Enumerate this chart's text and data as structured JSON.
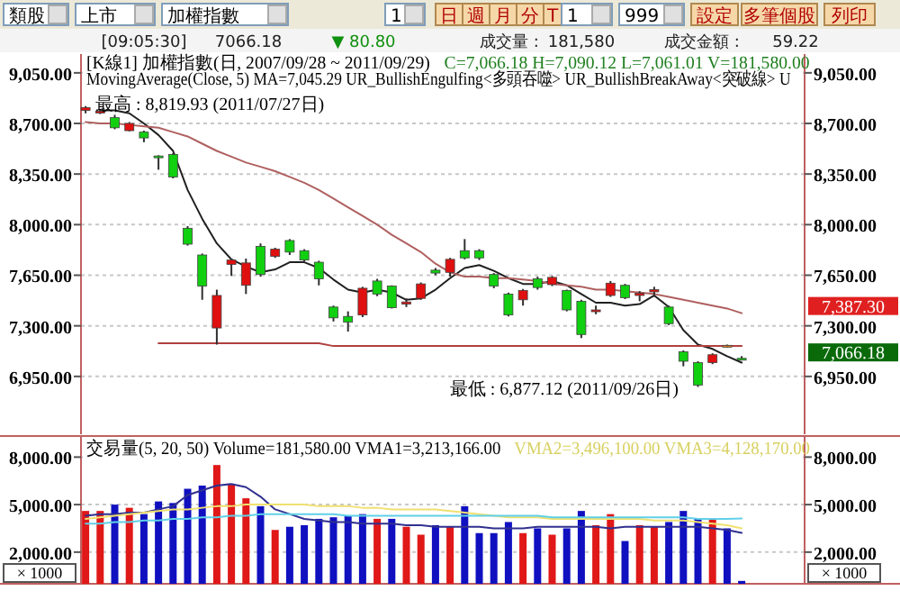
{
  "chart_data": [
    {
      "type": "candlestick",
      "title": "[K線1]  加權指數(日, 2007/09/28 ~ 2011/09/29)",
      "subtitle": "C=7,066.18 H=7,090.12 L=7,061.01 V=181,580.00",
      "categories": [
        null,
        null,
        null,
        null,
        null,
        null,
        null,
        null,
        null,
        null,
        null,
        null,
        null,
        null,
        null,
        null,
        null,
        null,
        null,
        null,
        null,
        null,
        null,
        null,
        null,
        null,
        null,
        null,
        null,
        null,
        null,
        null,
        null,
        null,
        null,
        null,
        null,
        null,
        null,
        null,
        null,
        null,
        null,
        null,
        null,
        null
      ],
      "ohlc": [
        [
          8790,
          8819.93,
          8770,
          8810
        ],
        [
          8775,
          8800,
          8765,
          8785
        ],
        [
          8740,
          8760,
          8660,
          8670
        ],
        [
          8650,
          8710,
          8645,
          8700
        ],
        [
          8640,
          8650,
          8570,
          8600
        ],
        [
          8475,
          8480,
          8380,
          8470
        ],
        [
          8485,
          8495,
          8320,
          8330
        ],
        [
          7975,
          7990,
          7855,
          7865
        ],
        [
          7790,
          7800,
          7480,
          7575
        ],
        [
          7285,
          7550,
          7170,
          7510
        ],
        [
          7725,
          7765,
          7645,
          7755
        ],
        [
          7580,
          7765,
          7520,
          7735
        ],
        [
          7850,
          7870,
          7640,
          7655
        ],
        [
          7780,
          7840,
          7770,
          7830
        ],
        [
          7890,
          7900,
          7790,
          7810
        ],
        [
          7820,
          7830,
          7745,
          7755
        ],
        [
          7740,
          7750,
          7580,
          7625
        ],
        [
          7430,
          7440,
          7330,
          7355
        ],
        [
          7365,
          7400,
          7260,
          7325
        ],
        [
          7375,
          7570,
          7360,
          7560
        ],
        [
          7610,
          7625,
          7505,
          7520
        ],
        [
          7575,
          7580,
          7420,
          7425
        ],
        [
          7450,
          7490,
          7430,
          7465
        ],
        [
          7490,
          7600,
          7480,
          7590
        ],
        [
          7685,
          7700,
          7650,
          7665
        ],
        [
          7670,
          7770,
          7640,
          7760
        ],
        [
          7820,
          7900,
          7760,
          7770
        ],
        [
          7820,
          7830,
          7755,
          7770
        ],
        [
          7655,
          7665,
          7560,
          7575
        ],
        [
          7520,
          7530,
          7365,
          7375
        ],
        [
          7480,
          7555,
          7440,
          7545
        ],
        [
          7625,
          7640,
          7550,
          7565
        ],
        [
          7585,
          7645,
          7575,
          7635
        ],
        [
          7545,
          7550,
          7400,
          7410
        ],
        [
          7470,
          7480,
          7215,
          7240
        ],
        [
          7400,
          7440,
          7380,
          7410
        ],
        [
          7510,
          7610,
          7500,
          7595
        ],
        [
          7580,
          7590,
          7485,
          7495
        ],
        [
          7510,
          7540,
          7470,
          7525
        ],
        [
          7535,
          7570,
          7500,
          7550
        ],
        [
          7430,
          7440,
          7305,
          7315
        ],
        [
          7120,
          7130,
          7020,
          7055
        ],
        [
          7045,
          7055,
          6877.12,
          6890
        ],
        [
          7045,
          7110,
          7035,
          7100
        ],
        [
          7160,
          7170,
          7150,
          7165
        ],
        [
          7075,
          7090.12,
          7061.01,
          7066.18
        ]
      ],
      "colors": [
        "#e01010",
        "#e01010",
        "#10d010",
        "#e01010",
        "#10d010",
        "#10d010",
        "#10d010",
        "#10d010",
        "#10d010",
        "#e01010",
        "#e01010",
        "#e01010",
        "#10d010",
        "#e01010",
        "#10d010",
        "#10d010",
        "#10d010",
        "#10d010",
        "#10d010",
        "#e01010",
        "#10d010",
        "#10d010",
        "#e01010",
        "#e01010",
        "#10d010",
        "#e01010",
        "#10d010",
        "#10d010",
        "#10d010",
        "#10d010",
        "#e01010",
        "#10d010",
        "#e01010",
        "#10d010",
        "#10d010",
        "#e01010",
        "#e01010",
        "#10d010",
        "#e01010",
        "#e01010",
        "#10d010",
        "#10d010",
        "#10d010",
        "#e01010",
        "#e08020",
        "#10d010"
      ],
      "series": [
        {
          "type": "line",
          "color": "#202020",
          "values": [
            null,
            8790,
            8790,
            8770,
            8700,
            8620,
            8510,
            8240,
            8040,
            7870,
            7760,
            7710,
            7670,
            7690,
            7740,
            7740,
            7700,
            7620,
            7550,
            7530,
            7550,
            7530,
            7480,
            7490,
            7550,
            7630,
            7700,
            7720,
            7680,
            7630,
            7590,
            7590,
            7610,
            7580,
            7520,
            7460,
            7460,
            7440,
            7450,
            7510,
            7430,
            7270,
            7170,
            7140,
            7090,
            7045.29
          ]
        },
        {
          "type": "line",
          "color": "#b06060",
          "values": [
            8710,
            8700,
            8700,
            8690,
            8680,
            8670,
            8640,
            8610,
            8560,
            8510,
            8470,
            8430,
            8400,
            8370,
            8330,
            8290,
            8240,
            8180,
            8120,
            8060,
            8000,
            7930,
            7870,
            7810,
            7730,
            7670,
            7640,
            7640,
            7630,
            7630,
            7620,
            7610,
            7590,
            7580,
            7570,
            7550,
            7550,
            7540,
            7530,
            7520,
            7500,
            7480,
            7460,
            7440,
            7420,
            7387.3
          ]
        },
        {
          "type": "line",
          "color": "#b04040",
          "values": [
            null,
            null,
            null,
            null,
            null,
            7180,
            7180,
            7180,
            7180,
            7180,
            7180,
            7180,
            7180,
            7180,
            7180,
            7180,
            7180,
            7160,
            7160,
            7160,
            7160,
            7160,
            7160,
            7160,
            7160,
            7160,
            7160,
            7160,
            7160,
            7160,
            7160,
            7160,
            7160,
            7160,
            7160,
            7160,
            7160,
            7160,
            7160,
            7160,
            7160,
            7160,
            7160,
            7160,
            7160,
            7160
          ]
        }
      ],
      "ylim": [
        6550,
        9180
      ],
      "yticks": [
        {
          "value": 6950,
          "label": "6,950.00"
        },
        {
          "value": 7300,
          "label": "7,300.00"
        },
        {
          "value": 7650,
          "label": "7,650.00"
        },
        {
          "value": 8000,
          "label": "8,000.00"
        },
        {
          "value": 8350,
          "label": "8,350.00"
        },
        {
          "value": 8700,
          "label": "8,700.00"
        },
        {
          "value": 9050,
          "label": "9,050.00"
        }
      ],
      "y2lim": [
        6550,
        9180
      ],
      "y2ticks": [
        {
          "value": 6950,
          "label": "6,950.00"
        },
        {
          "value": 7300,
          "label": "7,300.00"
        },
        {
          "value": 7650,
          "label": "7,650.00"
        },
        {
          "value": 8000,
          "label": "8,000.00"
        },
        {
          "value": 8350,
          "label": "8,350.00"
        },
        {
          "value": 8700,
          "label": "8,700.00"
        },
        {
          "value": 9050,
          "label": "9,050.00"
        }
      ],
      "grid": "y",
      "annotations": [
        "類股",
        "上市",
        "加權指數",
        "1",
        "日",
        "週",
        "月",
        "分",
        "T",
        "1",
        "999",
        "設定",
        "多筆個股",
        "列印",
        "[09:05:30]",
        "7066.18",
        "▼ 80.80",
        "成交量 :",
        "181,580",
        "成交金額 :",
        "59.22",
        "MovingAverage(Close, 5)   MA=7,045.29   UR_BullishEngulfing<多頭吞噬>   UR_BullishBreakAway<突破線>   U",
        "最高 : 8,819.93 (2011/07/27日)",
        "最低 : 6,877.12 (2011/09/26日)",
        "7,387.30",
        "7,066.18"
      ]
    },
    {
      "type": "bar",
      "title": "交易量(5, 20, 50)  Volume=181,580.00  VMA1=3,213,166.00",
      "subtitle": "VMA2=3,496,100.00  VMA3=4,128,170.00",
      "categories": [
        null,
        null,
        null,
        null,
        null,
        null,
        null,
        null,
        null,
        null,
        null,
        null,
        null,
        null,
        null,
        null,
        null,
        null,
        null,
        null,
        null,
        null,
        null,
        null,
        null,
        null,
        null,
        null,
        null,
        null,
        null,
        null,
        null,
        null,
        null,
        null,
        null,
        null,
        null,
        null,
        null,
        null,
        null,
        null,
        null,
        null
      ],
      "series": [
        {
          "type": "bar",
          "values": [
            4600,
            4600,
            5000,
            4800,
            4400,
            5200,
            5100,
            6000,
            6200,
            7500,
            6300,
            5400,
            4900,
            3400,
            3600,
            3700,
            4100,
            4200,
            4300,
            4400,
            4100,
            4100,
            3600,
            3100,
            3700,
            3600,
            4900,
            3200,
            3200,
            3900,
            3200,
            3500,
            3100,
            3500,
            4600,
            3700,
            4400,
            2700,
            3700,
            3600,
            3900,
            4600,
            4100,
            4100,
            3500,
            181.58
          ],
          "colors": [
            "#e01818",
            "#e01818",
            "#1010c0",
            "#e01818",
            "#1010c0",
            "#1010c0",
            "#1010c0",
            "#1010c0",
            "#1010c0",
            "#e01818",
            "#e01818",
            "#e01818",
            "#1010c0",
            "#e01818",
            "#1010c0",
            "#1010c0",
            "#1010c0",
            "#1010c0",
            "#1010c0",
            "#1010c0",
            "#e01818",
            "#1010c0",
            "#e01818",
            "#e01818",
            "#1010c0",
            "#e01818",
            "#1010c0",
            "#1010c0",
            "#1010c0",
            "#1010c0",
            "#e01818",
            "#1010c0",
            "#e01818",
            "#1010c0",
            "#1010c0",
            "#e01818",
            "#e01818",
            "#1010c0",
            "#e01818",
            "#e01818",
            "#1010c0",
            "#1010c0",
            "#1010c0",
            "#e01818",
            "#1010c0",
            "#1010c0"
          ]
        },
        {
          "type": "line",
          "color": "#303090",
          "values": [
            4300,
            4400,
            4400,
            4500,
            4500,
            4700,
            4900,
            5600,
            5900,
            6200,
            6300,
            6100,
            5500,
            4700,
            4400,
            4100,
            4000,
            3900,
            3900,
            3800,
            3800,
            3800,
            3700,
            3700,
            3600,
            3600,
            3600,
            3600,
            3500,
            3500,
            3500,
            3600,
            3600,
            3600,
            3600,
            3600,
            3500,
            3600,
            3600,
            3600,
            3600,
            3600,
            3600,
            3500,
            3400,
            3213.17
          ]
        },
        {
          "type": "line",
          "color": "#f0e070",
          "values": [
            4100,
            4200,
            4300,
            4400,
            4500,
            4600,
            4700,
            4700,
            4800,
            4900,
            4900,
            5000,
            5000,
            5000,
            5000,
            5000,
            4900,
            4900,
            4900,
            4800,
            4800,
            4700,
            4700,
            4700,
            4700,
            4600,
            4500,
            4400,
            4300,
            4200,
            4200,
            4200,
            4100,
            4100,
            4100,
            4100,
            4100,
            4100,
            4100,
            4000,
            4000,
            4000,
            3900,
            3800,
            3700,
            3496.1
          ]
        },
        {
          "type": "line",
          "color": "#60d0e8",
          "values": [
            3800,
            3800,
            3900,
            3900,
            4000,
            4000,
            4100,
            4100,
            4200,
            4200,
            4300,
            4300,
            4400,
            4400,
            4400,
            4400,
            4400,
            4400,
            4300,
            4300,
            4300,
            4300,
            4300,
            4300,
            4300,
            4300,
            4300,
            4300,
            4300,
            4300,
            4300,
            4300,
            4200,
            4200,
            4200,
            4200,
            4200,
            4200,
            4200,
            4200,
            4200,
            4200,
            4100,
            4100,
            4100,
            4128.17
          ]
        }
      ],
      "ylim": [
        0,
        9330
      ],
      "yticks": [
        {
          "value": 2000,
          "label": "2,000.00"
        },
        {
          "value": 5000,
          "label": "5,000.00"
        },
        {
          "value": 8000,
          "label": "8,000.00"
        }
      ],
      "y2lim": [
        0,
        9330
      ],
      "y2ticks": [
        {
          "value": 2000,
          "label": "2,000.00"
        },
        {
          "value": 5000,
          "label": "5,000.00"
        },
        {
          "value": 8000,
          "label": "8,000.00"
        }
      ],
      "grid": "y",
      "annotations": [
        "× 1000",
        "× 1000"
      ]
    }
  ]
}
